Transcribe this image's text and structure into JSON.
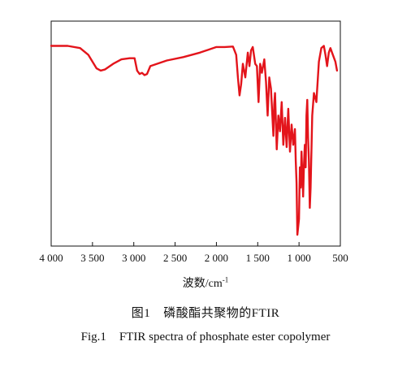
{
  "chart_data": {
    "type": "line",
    "x_reversed": true,
    "xlim": [
      500,
      4000
    ],
    "ylim": [
      0,
      100
    ],
    "y_ticks_shown": false,
    "xticks": [
      4000,
      3500,
      3000,
      2500,
      2000,
      1500,
      1000,
      500
    ],
    "xtick_labels": [
      "4 000",
      "3 500",
      "3 000",
      "2 500",
      "2 000",
      "1 500",
      "1 000",
      "500"
    ],
    "xlabel_main": "波数/cm",
    "xlabel_sup": "-1",
    "line_color": "#e3141b",
    "series": [
      {
        "x": [
          4000,
          3800,
          3650,
          3550,
          3450,
          3400,
          3350,
          3250,
          3150,
          3050,
          2990,
          2960,
          2930,
          2900,
          2870,
          2840,
          2800,
          2600,
          2400,
          2200,
          2000,
          1900,
          1800,
          1760,
          1740,
          1720,
          1700,
          1680,
          1650,
          1620,
          1600,
          1580,
          1560,
          1530,
          1510,
          1490,
          1470,
          1450,
          1420,
          1400,
          1380,
          1360,
          1340,
          1310,
          1300,
          1290,
          1270,
          1250,
          1230,
          1210,
          1190,
          1170,
          1150,
          1130,
          1110,
          1090,
          1070,
          1050,
          1040,
          1030,
          1020,
          1000,
          990,
          980,
          970,
          960,
          950,
          940,
          930,
          920,
          910,
          900,
          890,
          880,
          870,
          860,
          840,
          820,
          790,
          760,
          730,
          700,
          680,
          660,
          640,
          620,
          600,
          560,
          540
        ],
        "y": [
          89,
          89,
          88,
          85,
          79,
          78,
          78.5,
          81,
          83,
          83.5,
          83.5,
          78,
          76.5,
          77,
          76,
          76.5,
          80,
          82.5,
          84,
          86,
          88.5,
          88.5,
          88.7,
          85,
          75,
          67,
          72,
          81,
          75,
          86,
          80,
          87,
          88.5,
          81,
          80,
          64,
          81,
          77,
          83,
          73,
          58,
          75,
          70,
          49,
          63,
          68,
          43,
          58,
          51,
          64,
          45,
          57,
          44,
          61,
          42,
          54,
          45,
          52,
          38,
          28,
          5,
          12,
          35,
          26,
          42,
          32,
          22,
          36,
          45,
          35,
          58,
          65,
          48,
          38,
          17,
          26,
          58,
          68,
          64,
          82,
          88,
          89,
          85,
          80,
          86,
          88,
          86,
          82,
          78
        ]
      }
    ]
  },
  "caption": {
    "cn_number": "图1",
    "cn_text": "磷酸酯共聚物的FTIR",
    "en_number": "Fig.1",
    "en_text": "FTIR spectra of phosphate ester copolymer"
  }
}
